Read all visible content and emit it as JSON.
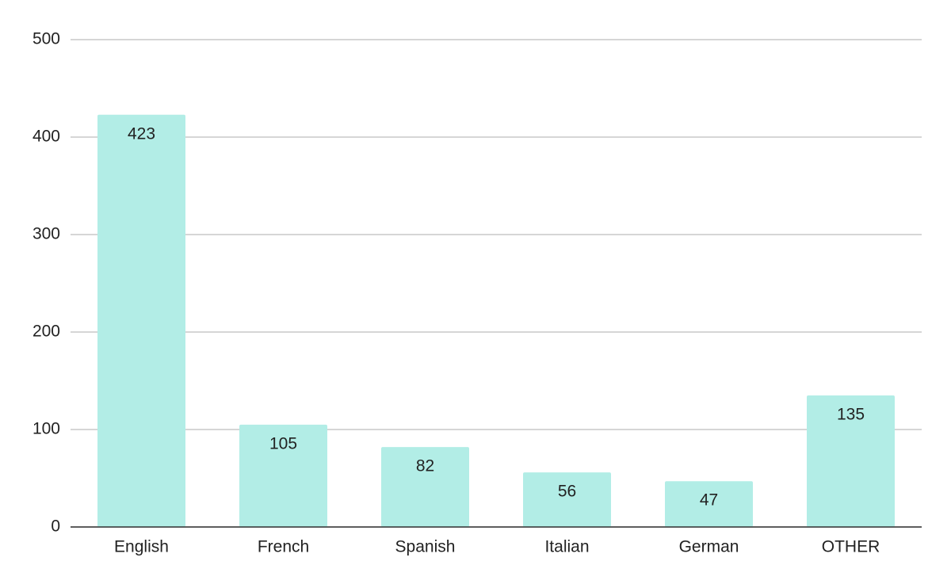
{
  "chart_data": {
    "type": "bar",
    "categories": [
      "English",
      "French",
      "Spanish",
      "Italian",
      "German",
      "OTHER"
    ],
    "values": [
      423,
      105,
      82,
      56,
      47,
      135
    ],
    "color": "#b2ede6",
    "ylim": [
      0,
      500
    ],
    "yticks": [
      0,
      100,
      200,
      300,
      400,
      500
    ],
    "grid": true
  }
}
